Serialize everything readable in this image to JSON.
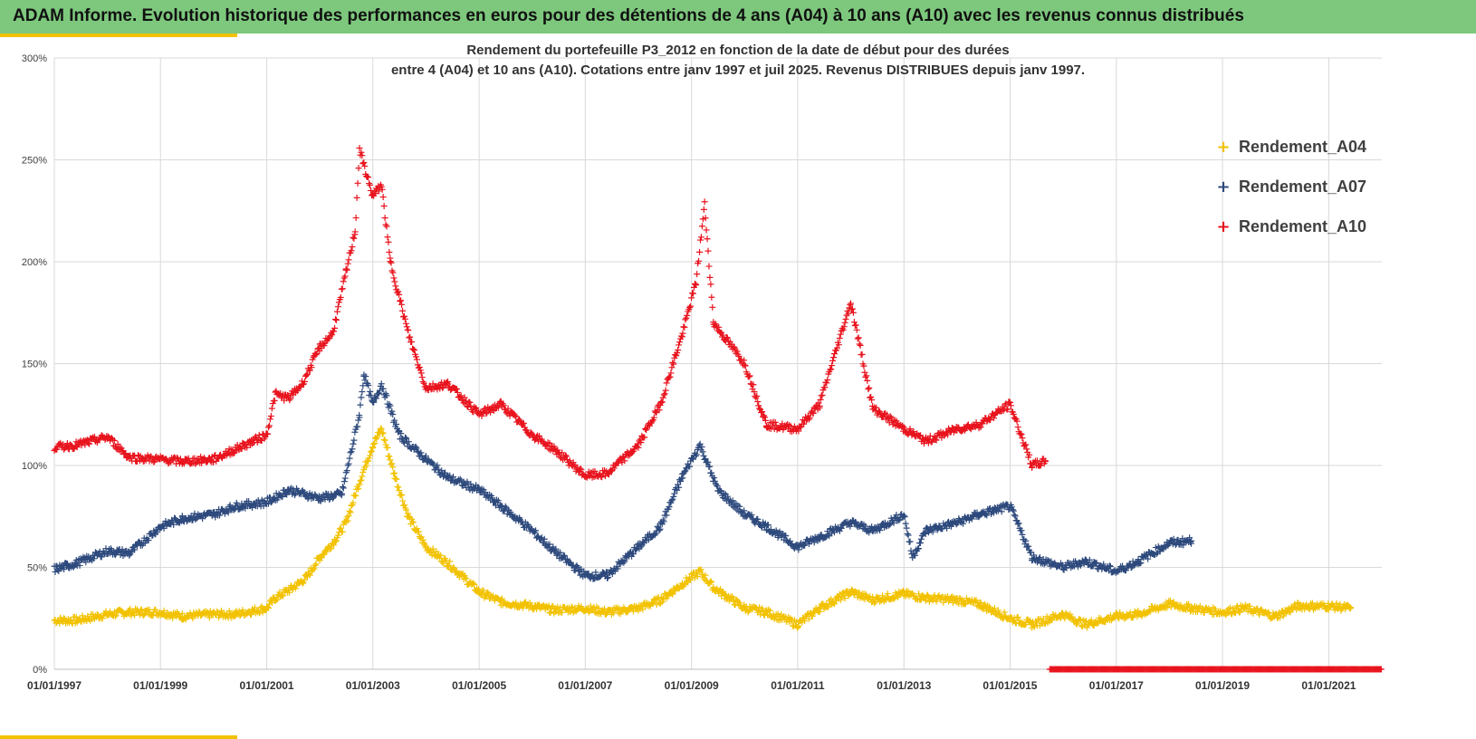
{
  "header": {
    "title": "ADAM Informe. Evolution historique des performances en euros pour des détentions de 4 ans (A04) à 10 ans (A10) avec les revenus connus distribués"
  },
  "colors": {
    "banner": "#7dc87d",
    "accent": "#f2c200",
    "A04": "#f2c200",
    "A07": "#2e4a7d",
    "A10": "#e8141e",
    "grid": "#d9d9d9"
  },
  "chart_data": {
    "type": "scatter",
    "title_line1": "Rendement du portefeuille P3_2012 en fonction de la date de début pour des durées",
    "title_line2": "entre 4 (A04) et 10 ans (A10). Cotations entre janv 1997 et juil 2025. Revenus DISTRIBUES depuis janv 1997.",
    "xlabel": "",
    "ylabel": "",
    "x_range": [
      "1997-01-01",
      "2022-01-01"
    ],
    "ylim": [
      0,
      300
    ],
    "y_ticks": [
      "0%",
      "50%",
      "100%",
      "150%",
      "200%",
      "250%",
      "300%"
    ],
    "x_ticks": [
      "01/01/1997",
      "01/01/1999",
      "01/01/2001",
      "01/01/2003",
      "01/01/2005",
      "01/01/2007",
      "01/01/2009",
      "01/01/2011",
      "01/01/2013",
      "01/01/2015",
      "01/01/2017",
      "01/01/2019",
      "01/01/2021"
    ],
    "grid": true,
    "legend_position": "top-right",
    "marker": "+",
    "series": [
      {
        "name": "Rendement_A04",
        "color": "#f2c200",
        "points": [
          [
            "1997-01-01",
            24
          ],
          [
            "1997-06-01",
            24
          ],
          [
            "1998-01-01",
            27
          ],
          [
            "1998-06-01",
            28
          ],
          [
            "1999-01-01",
            28
          ],
          [
            "1999-06-01",
            26
          ],
          [
            "2000-01-01",
            27
          ],
          [
            "2000-06-01",
            27
          ],
          [
            "2001-01-01",
            30
          ],
          [
            "2001-03-01",
            35
          ],
          [
            "2001-07-01",
            40
          ],
          [
            "2001-10-01",
            45
          ],
          [
            "2002-01-01",
            55
          ],
          [
            "2002-04-01",
            62
          ],
          [
            "2002-07-01",
            72
          ],
          [
            "2002-10-01",
            92
          ],
          [
            "2003-01-01",
            110
          ],
          [
            "2003-03-01",
            118
          ],
          [
            "2003-06-01",
            95
          ],
          [
            "2003-09-01",
            75
          ],
          [
            "2004-01-01",
            60
          ],
          [
            "2004-06-01",
            52
          ],
          [
            "2005-01-01",
            38
          ],
          [
            "2005-06-01",
            33
          ],
          [
            "2006-01-01",
            31
          ],
          [
            "2006-06-01",
            29
          ],
          [
            "2007-01-01",
            30
          ],
          [
            "2007-06-01",
            28
          ],
          [
            "2008-01-01",
            30
          ],
          [
            "2008-06-01",
            34
          ],
          [
            "2008-11-01",
            42
          ],
          [
            "2009-03-01",
            48
          ],
          [
            "2009-06-01",
            40
          ],
          [
            "2010-01-01",
            30
          ],
          [
            "2010-06-01",
            28
          ],
          [
            "2011-01-01",
            22
          ],
          [
            "2011-06-01",
            30
          ],
          [
            "2012-01-01",
            38
          ],
          [
            "2012-06-01",
            34
          ],
          [
            "2013-01-01",
            37
          ],
          [
            "2013-06-01",
            35
          ],
          [
            "2014-01-01",
            34
          ],
          [
            "2014-06-01",
            32
          ],
          [
            "2015-01-01",
            25
          ],
          [
            "2015-06-01",
            22
          ],
          [
            "2016-01-01",
            27
          ],
          [
            "2016-06-01",
            22
          ],
          [
            "2017-01-01",
            26
          ],
          [
            "2017-06-01",
            27
          ],
          [
            "2018-01-01",
            32
          ],
          [
            "2018-06-01",
            30
          ],
          [
            "2019-01-01",
            28
          ],
          [
            "2019-06-01",
            30
          ],
          [
            "2020-01-01",
            26
          ],
          [
            "2020-06-01",
            31
          ],
          [
            "2021-01-01",
            31
          ],
          [
            "2021-06-01",
            30
          ]
        ]
      },
      {
        "name": "Rendement_A07",
        "color": "#2e4a7d",
        "points": [
          [
            "1997-01-01",
            49
          ],
          [
            "1997-06-01",
            52
          ],
          [
            "1998-01-01",
            58
          ],
          [
            "1998-06-01",
            57
          ],
          [
            "1999-01-01",
            70
          ],
          [
            "1999-06-01",
            74
          ],
          [
            "2000-01-01",
            76
          ],
          [
            "2000-06-01",
            80
          ],
          [
            "2001-01-01",
            82
          ],
          [
            "2001-06-01",
            88
          ],
          [
            "2002-01-01",
            84
          ],
          [
            "2002-06-01",
            86
          ],
          [
            "2002-10-01",
            125
          ],
          [
            "2002-11-01",
            145
          ],
          [
            "2003-01-01",
            130
          ],
          [
            "2003-03-01",
            140
          ],
          [
            "2003-07-01",
            115
          ],
          [
            "2004-01-01",
            103
          ],
          [
            "2004-06-01",
            94
          ],
          [
            "2005-01-01",
            88
          ],
          [
            "2005-06-01",
            80
          ],
          [
            "2006-01-01",
            68
          ],
          [
            "2006-06-01",
            58
          ],
          [
            "2007-01-01",
            46
          ],
          [
            "2007-06-01",
            46
          ],
          [
            "2008-01-01",
            60
          ],
          [
            "2008-06-01",
            70
          ],
          [
            "2008-11-01",
            95
          ],
          [
            "2009-03-01",
            110
          ],
          [
            "2009-07-01",
            88
          ],
          [
            "2010-01-01",
            76
          ],
          [
            "2010-06-01",
            70
          ],
          [
            "2011-01-01",
            60
          ],
          [
            "2011-06-01",
            65
          ],
          [
            "2012-01-01",
            72
          ],
          [
            "2012-06-01",
            68
          ],
          [
            "2013-01-01",
            76
          ],
          [
            "2013-03-01",
            55
          ],
          [
            "2013-06-01",
            68
          ],
          [
            "2014-01-01",
            72
          ],
          [
            "2014-06-01",
            76
          ],
          [
            "2015-01-01",
            80
          ],
          [
            "2015-06-01",
            55
          ],
          [
            "2016-01-01",
            50
          ],
          [
            "2016-06-01",
            53
          ],
          [
            "2017-01-01",
            48
          ],
          [
            "2017-06-01",
            53
          ],
          [
            "2018-01-01",
            62
          ],
          [
            "2018-06-01",
            63
          ]
        ]
      },
      {
        "name": "Rendement_A10",
        "color": "#e8141e",
        "points": [
          [
            "1997-01-01",
            109
          ],
          [
            "1997-06-01",
            110
          ],
          [
            "1998-01-01",
            114
          ],
          [
            "1998-06-01",
            104
          ],
          [
            "1999-01-01",
            103
          ],
          [
            "1999-06-01",
            102
          ],
          [
            "2000-01-01",
            103
          ],
          [
            "2000-06-01",
            108
          ],
          [
            "2001-01-01",
            115
          ],
          [
            "2001-03-01",
            135
          ],
          [
            "2001-06-01",
            133
          ],
          [
            "2001-09-01",
            140
          ],
          [
            "2002-01-01",
            158
          ],
          [
            "2002-04-01",
            165
          ],
          [
            "2002-07-01",
            195
          ],
          [
            "2002-09-01",
            215
          ],
          [
            "2002-10-01",
            255
          ],
          [
            "2003-01-01",
            232
          ],
          [
            "2003-03-01",
            238
          ],
          [
            "2003-05-01",
            200
          ],
          [
            "2003-09-01",
            165
          ],
          [
            "2004-01-01",
            138
          ],
          [
            "2004-06-01",
            140
          ],
          [
            "2005-01-01",
            125
          ],
          [
            "2005-06-01",
            130
          ],
          [
            "2006-01-01",
            115
          ],
          [
            "2006-06-01",
            108
          ],
          [
            "2007-01-01",
            95
          ],
          [
            "2007-06-01",
            96
          ],
          [
            "2008-01-01",
            110
          ],
          [
            "2008-06-01",
            130
          ],
          [
            "2008-11-01",
            165
          ],
          [
            "2009-02-01",
            190
          ],
          [
            "2009-04-01",
            228
          ],
          [
            "2009-06-01",
            170
          ],
          [
            "2010-01-01",
            150
          ],
          [
            "2010-06-01",
            120
          ],
          [
            "2011-01-01",
            118
          ],
          [
            "2011-06-01",
            130
          ],
          [
            "2012-01-01",
            180
          ],
          [
            "2012-06-01",
            128
          ],
          [
            "2013-01-01",
            118
          ],
          [
            "2013-06-01",
            112
          ],
          [
            "2014-01-01",
            118
          ],
          [
            "2014-06-01",
            120
          ],
          [
            "2015-01-01",
            130
          ],
          [
            "2015-06-01",
            100
          ],
          [
            "2015-09-01",
            102
          ]
        ],
        "zero_run": [
          "2015-10-01",
          "2022-01-01"
        ]
      }
    ]
  }
}
